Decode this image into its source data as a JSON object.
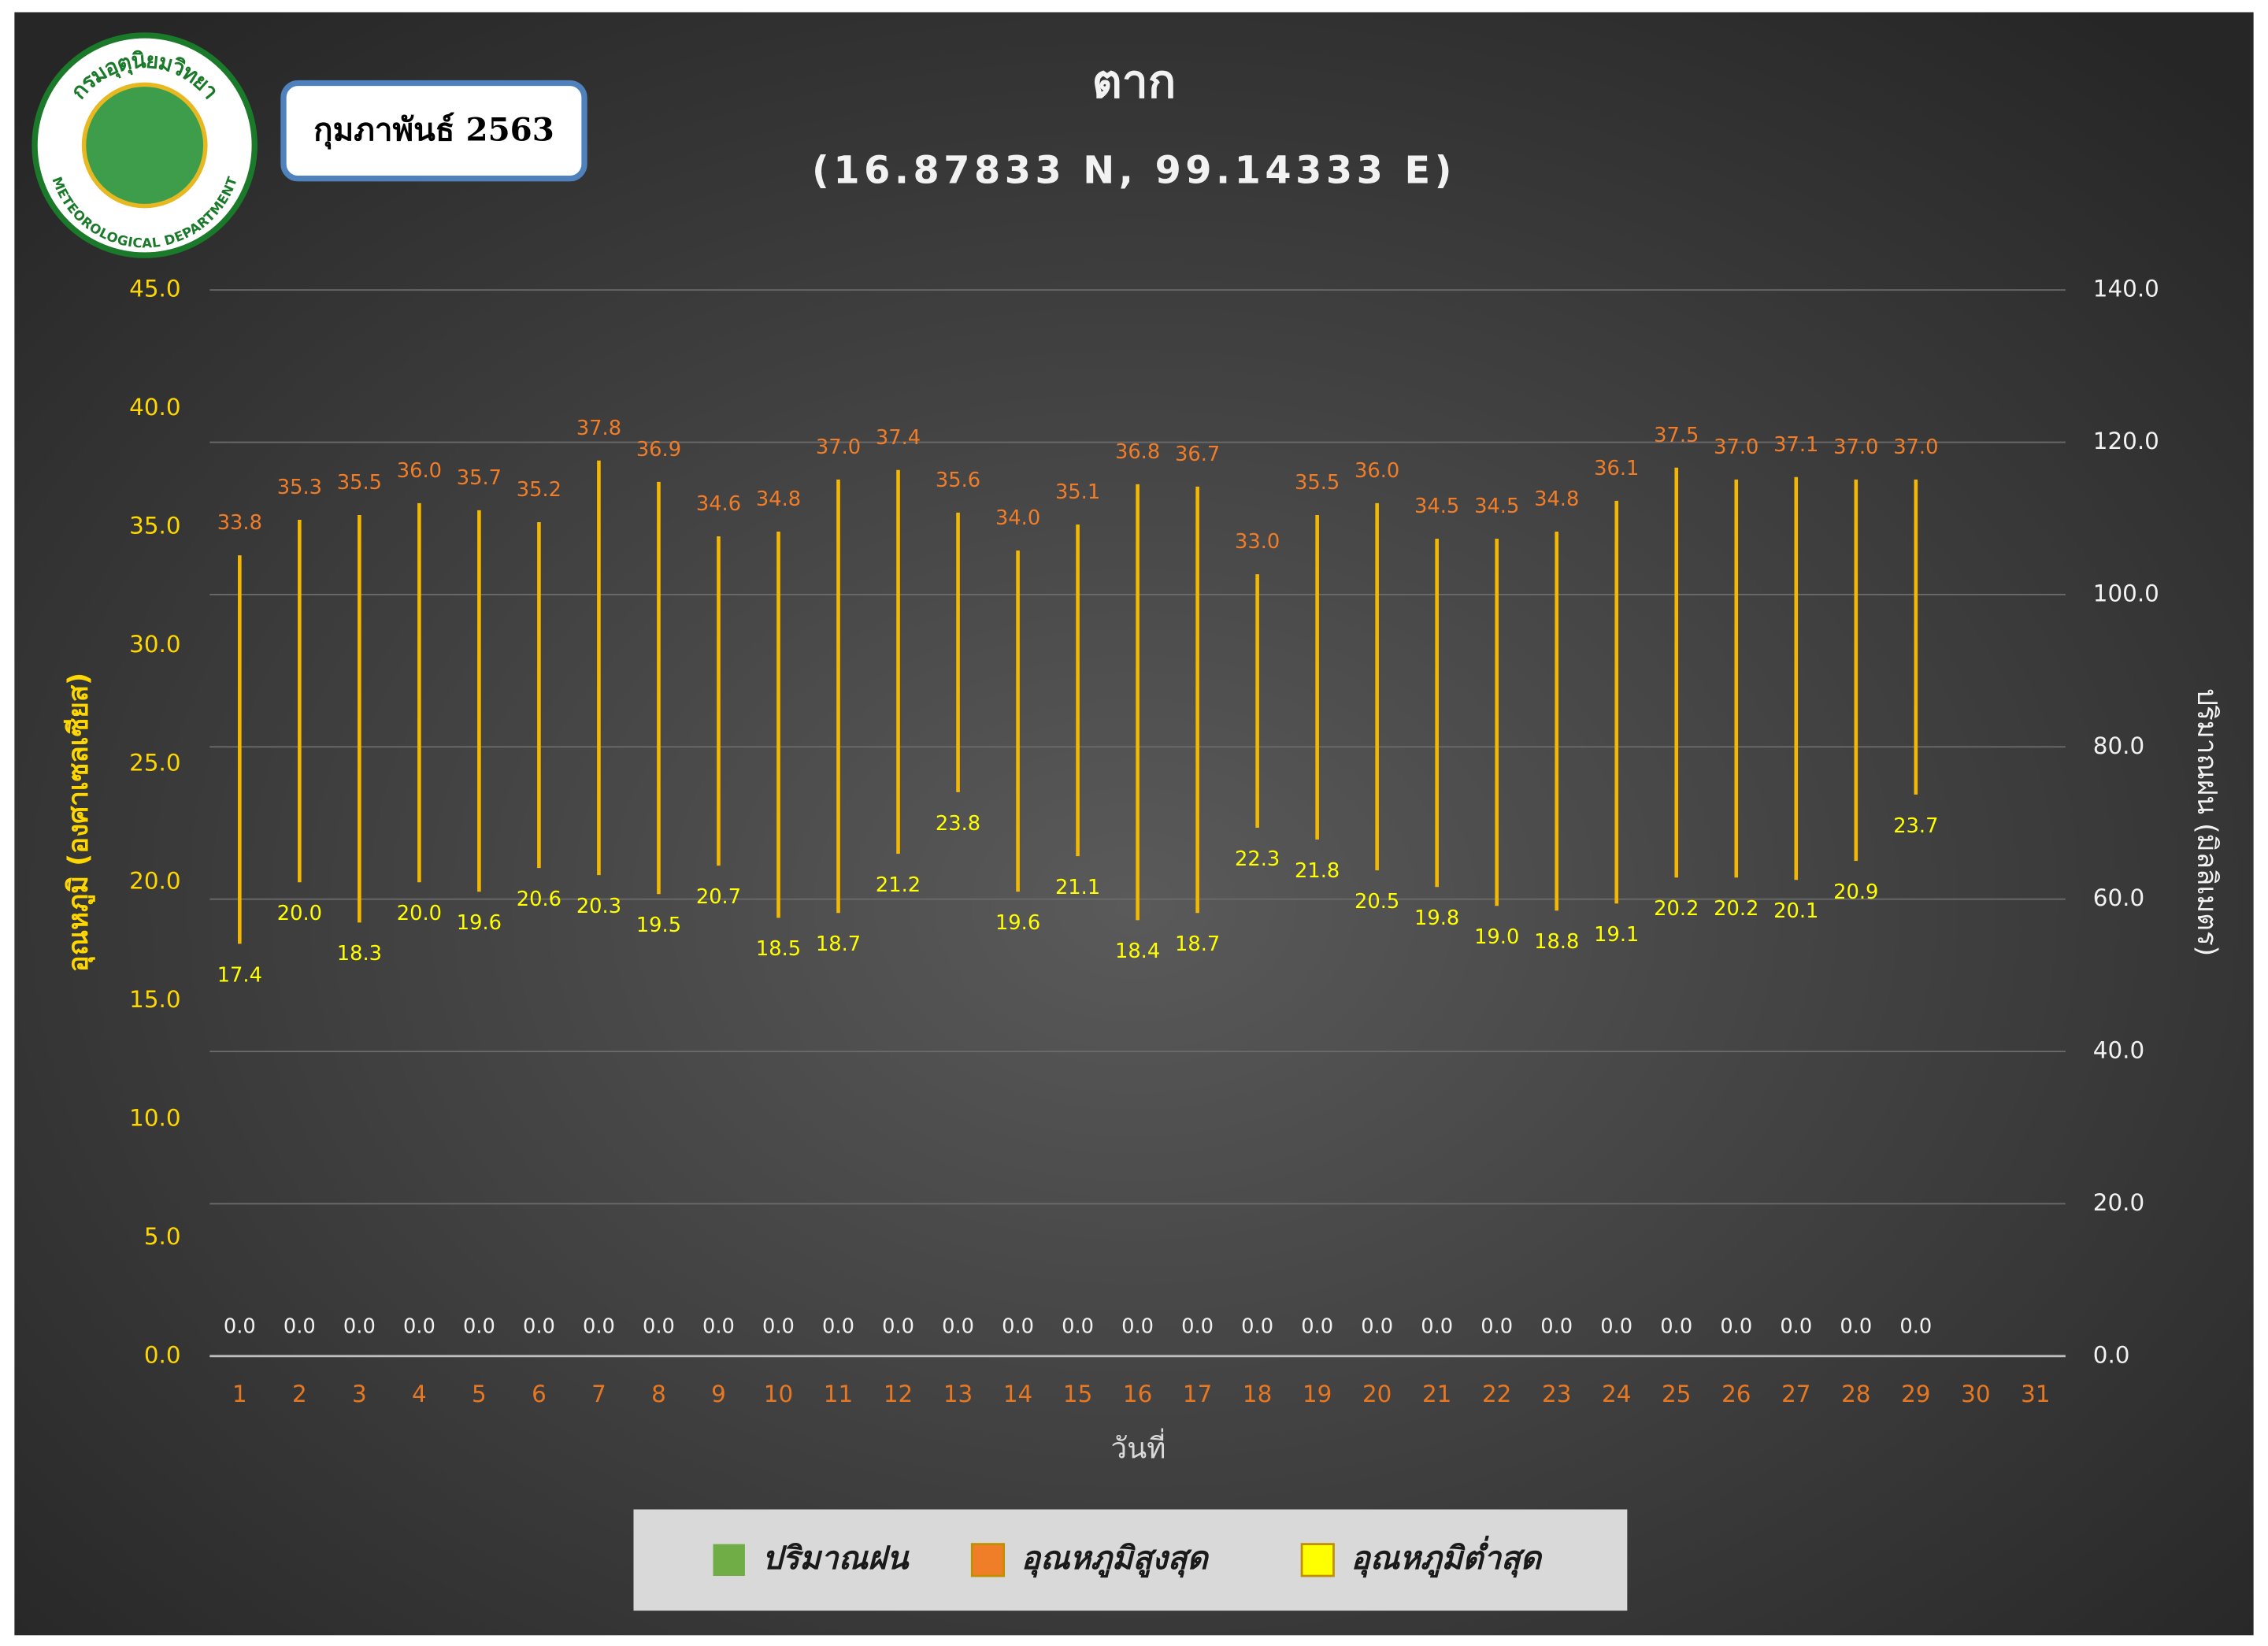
{
  "chart_data": {
    "type": "range",
    "title": "ตาก",
    "subtitle": "(16.87833 N, 99.14333 E)",
    "period_badge": "กุมภาพันธ์ 2563",
    "logo_thai": "กรมอุตุนิยมวิทยา",
    "logo_english": "METEOROLOGICAL DEPARTMENT",
    "x_label": "วันที่",
    "y_label": "อุณหภูมิ (องศาเซลเซียส)",
    "y2_label": "ปริมาณฝน (มิลลิเมตร)",
    "categories": [
      "1",
      "2",
      "3",
      "4",
      "5",
      "6",
      "7",
      "8",
      "9",
      "10",
      "11",
      "12",
      "13",
      "14",
      "15",
      "16",
      "17",
      "18",
      "19",
      "20",
      "21",
      "22",
      "23",
      "24",
      "25",
      "26",
      "27",
      "28",
      "29",
      "30",
      "31"
    ],
    "ylim": [
      0,
      45
    ],
    "yticks": [
      {
        "value": 0,
        "label": "0.0"
      },
      {
        "value": 5,
        "label": "5.0"
      },
      {
        "value": 10,
        "label": "10.0"
      },
      {
        "value": 15,
        "label": "15.0"
      },
      {
        "value": 20,
        "label": "20.0"
      },
      {
        "value": 25,
        "label": "25.0"
      },
      {
        "value": 30,
        "label": "30.0"
      },
      {
        "value": 35,
        "label": "35.0"
      },
      {
        "value": 40,
        "label": "40.0"
      },
      {
        "value": 45,
        "label": "45.0"
      }
    ],
    "y2lim": [
      0,
      140
    ],
    "y2ticks": [
      {
        "value": 0,
        "label": "0.0"
      },
      {
        "value": 20,
        "label": "20.0"
      },
      {
        "value": 40,
        "label": "40.0"
      },
      {
        "value": 60,
        "label": "60.0"
      },
      {
        "value": 80,
        "label": "80.0"
      },
      {
        "value": 100,
        "label": "100.0"
      },
      {
        "value": 120,
        "label": "120.0"
      },
      {
        "value": 140,
        "label": "140.0"
      }
    ],
    "grid": "y2",
    "series": [
      {
        "name": "ปริมาณฝน",
        "color": "#70ad47",
        "axis": "y2",
        "values": [
          0,
          0,
          0,
          0,
          0,
          0,
          0,
          0,
          0,
          0,
          0,
          0,
          0,
          0,
          0,
          0,
          0,
          0,
          0,
          0,
          0,
          0,
          0,
          0,
          0,
          0,
          0,
          0,
          0,
          null,
          null
        ],
        "value_labels": [
          "0.0",
          "0.0",
          "0.0",
          "0.0",
          "0.0",
          "0.0",
          "0.0",
          "0.0",
          "0.0",
          "0.0",
          "0.0",
          "0.0",
          "0.0",
          "0.0",
          "0.0",
          "0.0",
          "0.0",
          "0.0",
          "0.0",
          "0.0",
          "0.0",
          "0.0",
          "0.0",
          "0.0",
          "0.0",
          "0.0",
          "0.0",
          "0.0",
          "0.0",
          null,
          null
        ]
      },
      {
        "name": "อุณหภูมิสูงสุด",
        "color": "#f07d28",
        "values": [
          33.8,
          35.3,
          35.5,
          36.0,
          35.7,
          35.2,
          37.8,
          36.9,
          34.6,
          34.8,
          37.0,
          37.4,
          35.6,
          34.0,
          35.1,
          36.8,
          36.7,
          33.0,
          35.5,
          36.0,
          34.5,
          34.5,
          34.8,
          36.1,
          37.5,
          37.0,
          37.1,
          37.0,
          37.0,
          null,
          null
        ],
        "value_labels": [
          "33.8",
          "35.3",
          "35.5",
          "36.0",
          "35.7",
          "35.2",
          "37.8",
          "36.9",
          "34.6",
          "34.8",
          "37.0",
          "37.4",
          "35.6",
          "34.0",
          "35.1",
          "36.8",
          "36.7",
          "33.0",
          "35.5",
          "36.0",
          "34.5",
          "34.5",
          "34.8",
          "36.1",
          "37.5",
          "37.0",
          "37.1",
          "37.0",
          "37.0",
          null,
          null
        ]
      },
      {
        "name": "อุณหภูมิต่ำสุด",
        "color": "#ffff00",
        "values": [
          17.4,
          20.0,
          18.3,
          20.0,
          19.6,
          20.6,
          20.3,
          19.5,
          20.7,
          18.5,
          18.7,
          21.2,
          23.8,
          19.6,
          21.1,
          18.4,
          18.7,
          22.3,
          21.8,
          20.5,
          19.8,
          19.0,
          18.8,
          19.1,
          20.2,
          20.2,
          20.1,
          20.9,
          23.7,
          null,
          null
        ],
        "value_labels": [
          "17.4",
          "20.0",
          "18.3",
          "20.0",
          "19.6",
          "20.6",
          "20.3",
          "19.5",
          "20.7",
          "18.5",
          "18.7",
          "21.2",
          "23.8",
          "19.6",
          "21.1",
          "18.4",
          "18.7",
          "22.3",
          "21.8",
          "20.5",
          "19.8",
          "19.0",
          "18.8",
          "19.1",
          "20.2",
          "20.2",
          "20.1",
          "20.9",
          "23.7",
          null,
          null
        ]
      }
    ],
    "range_color": "#f5b800"
  }
}
